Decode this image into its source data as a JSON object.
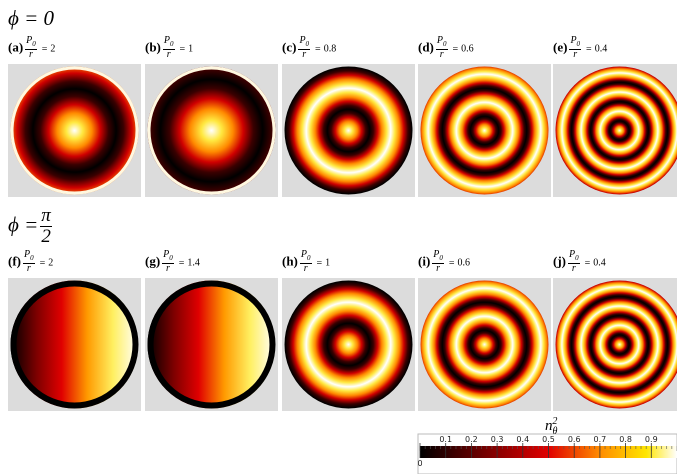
{
  "rows": [
    {
      "title": "ϕ = 0",
      "panels": [
        {
          "tag": "(a)",
          "ratio": 2
        },
        {
          "tag": "(b)",
          "ratio": 1
        },
        {
          "tag": "(c)",
          "ratio": 0.8
        },
        {
          "tag": "(d)",
          "ratio": 0.6
        },
        {
          "tag": "(e)",
          "ratio": 0.4
        }
      ]
    },
    {
      "title_lhs": "ϕ =",
      "title_numerator": "π",
      "title_denominator": "2",
      "panels": [
        {
          "tag": "(f)",
          "ratio": 2
        },
        {
          "tag": "(g)",
          "ratio": 1.4
        },
        {
          "tag": "(h)",
          "ratio": 1
        },
        {
          "tag": "(i)",
          "ratio": 0.6
        },
        {
          "tag": "(j)",
          "ratio": 0.4
        }
      ]
    }
  ],
  "parameter": {
    "numerator": "P",
    "subscript": "0",
    "denominator": "r",
    "relation": "="
  },
  "colorbar": {
    "symbol": "n",
    "subscript": "θ",
    "superscript": "2",
    "ticks": [
      0,
      0.1,
      0.2,
      0.3,
      0.4,
      0.5,
      0.6,
      0.7,
      0.8,
      0.9
    ]
  }
}
